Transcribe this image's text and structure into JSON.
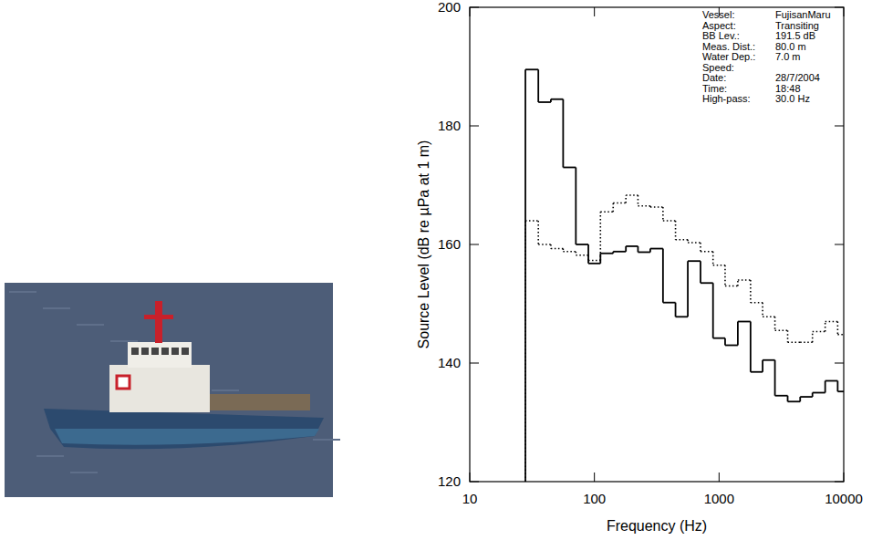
{
  "chart_data": {
    "type": "step",
    "x_label": "Frequency (Hz)",
    "y_label": "Source Level (dB re µPa at 1 m)",
    "x": [
      31.5,
      40,
      50,
      63,
      80,
      100,
      125,
      160,
      200,
      250,
      315,
      400,
      500,
      630,
      800,
      1000,
      1250,
      1600,
      2000,
      2500,
      3150,
      4000,
      5000,
      6300,
      8000,
      10000
    ],
    "series": [
      {
        "color": "#000000",
        "line_style": "solid",
        "values": [
          189.5,
          184,
          184.5,
          173,
          160,
          156.8,
          158.5,
          158.8,
          159.7,
          158.7,
          159.3,
          150.2,
          147.8,
          157.2,
          153.5,
          144.2,
          143,
          147,
          138.5,
          140.5,
          134.5,
          133.5,
          134.3,
          135,
          137,
          135.2
        ]
      },
      {
        "color": "#000000",
        "line_style": "dotted",
        "values": [
          164,
          160,
          159.3,
          158.8,
          158.2,
          157.3,
          165.5,
          167,
          168.3,
          166.5,
          166.3,
          164,
          160.8,
          160.3,
          158.8,
          156.5,
          153,
          154,
          150.2,
          147.8,
          145.5,
          143.5,
          143.5,
          145.3,
          147,
          144.8
        ]
      }
    ],
    "xlim": [
      10,
      10000
    ],
    "ylim": [
      120,
      200
    ],
    "xticks": [
      10,
      100,
      1000,
      10000
    ],
    "yticks": [
      120,
      140,
      160,
      180,
      200
    ],
    "log": "x",
    "grid": false,
    "annotations": [
      {
        "label": "Vessel:",
        "text": "FujisanMaru"
      },
      {
        "label": "Aspect:",
        "text": "Transiting"
      },
      {
        "label": "BB Lev.:",
        "text": "191.5 dB"
      },
      {
        "label": "Meas. Dist.:",
        "text": "80.0 m"
      },
      {
        "label": "Water Dep.:",
        "text": "7.0 m"
      },
      {
        "label": "Speed:"
      },
      {
        "label": "Date:",
        "text": "28/7/2004"
      },
      {
        "label": "Time:",
        "text": "18:48"
      },
      {
        "label": "High-pass:",
        "text": "30.0 Hz"
      }
    ]
  }
}
